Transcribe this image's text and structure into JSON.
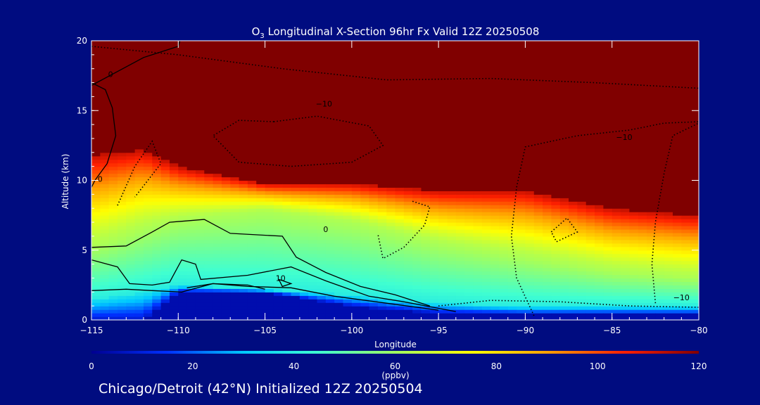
{
  "chart_data": {
    "type": "heatmap",
    "title": "O3 Longitudinal X-Section 96hr  Fx Valid 12Z 20250508",
    "title_parts": {
      "species": "O",
      "subscript": "3",
      "rest": " Longitudinal X-Section 96hr  Fx Valid 12Z 20250508"
    },
    "xlabel": "Longitude",
    "ylabel": "Altitude (km)",
    "xlim": [
      -115,
      -80
    ],
    "ylim": [
      0,
      20
    ],
    "x_ticks": [
      -115,
      -110,
      -105,
      -100,
      -95,
      -90,
      -85,
      -80
    ],
    "x_tick_labels": [
      "−115",
      "−110",
      "−105",
      "−100",
      "−95",
      "−90",
      "−85",
      "−80"
    ],
    "y_ticks": [
      0,
      5,
      10,
      15,
      20
    ],
    "y_tick_labels": [
      "0",
      "5",
      "10",
      "15",
      "20"
    ],
    "colorbar": {
      "label": "(ppbv)",
      "range": [
        0,
        120
      ],
      "ticks": [
        0,
        20,
        40,
        60,
        80,
        100,
        120
      ],
      "tick_labels": [
        "0",
        "20",
        "40",
        "60",
        "80",
        "100",
        "120"
      ],
      "colors": [
        "#000090",
        "#0030ff",
        "#00c8ff",
        "#40ffd0",
        "#a0ff60",
        "#ffff00",
        "#ffa000",
        "#ff2000",
        "#800000"
      ]
    },
    "field_profiles": [
      {
        "lon": -115,
        "surface": 0,
        "low_top": 1.5,
        "mid_top": 5.2,
        "upper_top": 11.8
      },
      {
        "lon": -112,
        "surface": 0,
        "low_top": 2.0,
        "mid_top": 6.5,
        "upper_top": 12.2
      },
      {
        "lon": -110,
        "surface": 2.0,
        "low_top": 2.5,
        "mid_top": 7.2,
        "upper_top": 11.0
      },
      {
        "lon": -105,
        "surface": 2.0,
        "low_top": 2.2,
        "mid_top": 7.8,
        "upper_top": 9.8
      },
      {
        "lon": -100,
        "surface": 1.0,
        "low_top": 1.8,
        "mid_top": 7.0,
        "upper_top": 9.8
      },
      {
        "lon": -95,
        "surface": 0.5,
        "low_top": 1.2,
        "mid_top": 5.5,
        "upper_top": 9.3
      },
      {
        "lon": -90,
        "surface": 0.4,
        "low_top": 1.0,
        "mid_top": 4.5,
        "upper_top": 9.3
      },
      {
        "lon": -85,
        "surface": 0.4,
        "low_top": 1.0,
        "mid_top": 3.5,
        "upper_top": 8.0
      },
      {
        "lon": -80,
        "surface": 0.4,
        "low_top": 1.0,
        "mid_top": 3.0,
        "upper_top": 7.5
      }
    ],
    "contour_labels": [
      {
        "text": "0",
        "lon": -113.9,
        "alt": 17.4
      },
      {
        "text": "−10",
        "lon": -101.6,
        "alt": 15.3
      },
      {
        "text": "−10",
        "lon": -84.3,
        "alt": 12.9
      },
      {
        "text": "0",
        "lon": -114.5,
        "alt": 9.9
      },
      {
        "text": "0",
        "lon": -101.5,
        "alt": 6.3
      },
      {
        "text": "10",
        "lon": -104.1,
        "alt": 2.8
      },
      {
        "text": "−10",
        "lon": -81.0,
        "alt": 1.4
      }
    ]
  },
  "footer": "Chicago/Detroit (42°N) Initialized 12Z 20250504"
}
